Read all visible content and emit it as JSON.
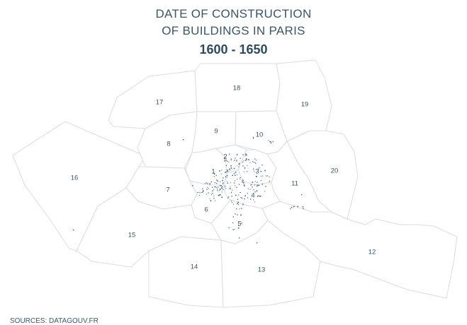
{
  "title_line1": "DATE OF CONSTRUCTION",
  "title_line2": "OF BUILDINGS IN PARIS",
  "period": "1600 - 1650",
  "source": "SOURCES: DATAGOUV.FR",
  "colors": {
    "text": "#3d5566",
    "border": "#d9dde0",
    "dots": "#4a6478"
  },
  "arrondissements": [
    "1",
    "2",
    "3",
    "4",
    "5",
    "6",
    "7",
    "8",
    "9",
    "10",
    "11",
    "12",
    "13",
    "14",
    "15",
    "16",
    "17",
    "18",
    "19",
    "20"
  ]
}
